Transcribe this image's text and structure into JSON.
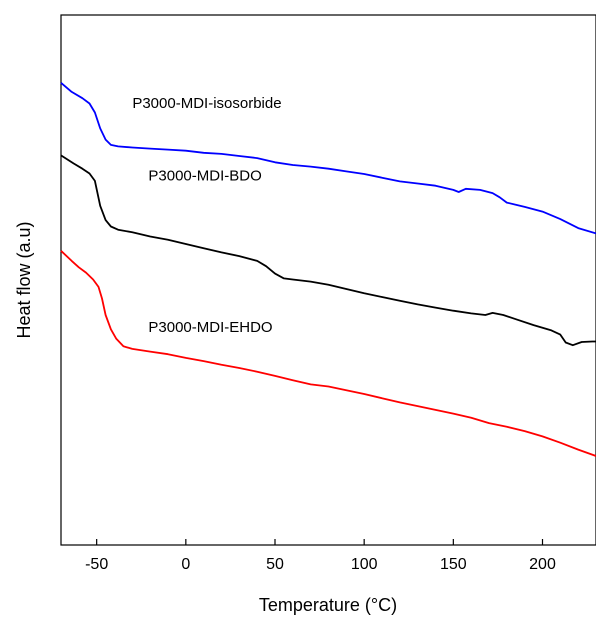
{
  "chart_data": {
    "type": "line",
    "title": "",
    "xlabel": "Temperature (°C)",
    "ylabel": "Heat flow (a.u)",
    "xlim": [
      -70,
      230
    ],
    "ylim": [
      0,
      100
    ],
    "x_ticks": [
      -50,
      0,
      50,
      100,
      150,
      200
    ],
    "x_tick_labels": [
      "-50",
      "0",
      "50",
      "100",
      "150",
      "200"
    ],
    "y_ticks_shown": false,
    "grid": false,
    "legend": "none",
    "series": [
      {
        "name": "P3000-MDI-isosorbide",
        "color": "#0000ff",
        "label_at": [
          -30,
          82.5
        ],
        "points": [
          [
            -70,
            87.2
          ],
          [
            -64,
            85.5
          ],
          [
            -58,
            84.3
          ],
          [
            -54,
            83.3
          ],
          [
            -51,
            81.6
          ],
          [
            -48,
            78.6
          ],
          [
            -45,
            76.5
          ],
          [
            -42,
            75.5
          ],
          [
            -38,
            75.2
          ],
          [
            -30,
            75
          ],
          [
            -20,
            74.8
          ],
          [
            -10,
            74.6
          ],
          [
            0,
            74.4
          ],
          [
            10,
            74
          ],
          [
            20,
            73.8
          ],
          [
            30,
            73.4
          ],
          [
            40,
            73
          ],
          [
            50,
            72.2
          ],
          [
            60,
            71.7
          ],
          [
            70,
            71.4
          ],
          [
            80,
            71
          ],
          [
            90,
            70.5
          ],
          [
            100,
            70
          ],
          [
            110,
            69.3
          ],
          [
            120,
            68.6
          ],
          [
            130,
            68.2
          ],
          [
            140,
            67.8
          ],
          [
            150,
            67
          ],
          [
            153,
            66.6
          ],
          [
            157,
            67.2
          ],
          [
            165,
            67
          ],
          [
            172,
            66.4
          ],
          [
            176,
            65.6
          ],
          [
            180,
            64.6
          ],
          [
            185,
            64.2
          ],
          [
            190,
            63.8
          ],
          [
            200,
            62.9
          ],
          [
            210,
            61.5
          ],
          [
            220,
            59.8
          ],
          [
            230,
            58.8
          ]
        ]
      },
      {
        "name": "P3000-MDI-BDO",
        "color": "#000000",
        "label_at": [
          -21,
          68.8
        ],
        "points": [
          [
            -70,
            73.5
          ],
          [
            -63,
            72
          ],
          [
            -58,
            71
          ],
          [
            -54,
            70.1
          ],
          [
            -51,
            68.7
          ],
          [
            -48,
            64
          ],
          [
            -45,
            61.3
          ],
          [
            -42,
            60.1
          ],
          [
            -38,
            59.5
          ],
          [
            -30,
            59
          ],
          [
            -20,
            58.2
          ],
          [
            -10,
            57.6
          ],
          [
            0,
            56.8
          ],
          [
            10,
            56
          ],
          [
            20,
            55.2
          ],
          [
            30,
            54.5
          ],
          [
            40,
            53.6
          ],
          [
            45,
            52.6
          ],
          [
            50,
            51.2
          ],
          [
            55,
            50.3
          ],
          [
            60,
            50.1
          ],
          [
            70,
            49.7
          ],
          [
            80,
            49.1
          ],
          [
            90,
            48.3
          ],
          [
            100,
            47.5
          ],
          [
            110,
            46.8
          ],
          [
            120,
            46.1
          ],
          [
            130,
            45.4
          ],
          [
            140,
            44.8
          ],
          [
            150,
            44.2
          ],
          [
            160,
            43.7
          ],
          [
            168,
            43.4
          ],
          [
            172,
            43.8
          ],
          [
            178,
            43.4
          ],
          [
            185,
            42.6
          ],
          [
            195,
            41.5
          ],
          [
            205,
            40.5
          ],
          [
            210,
            39.7
          ],
          [
            213,
            38.2
          ],
          [
            217,
            37.7
          ],
          [
            222,
            38.3
          ],
          [
            228,
            38.4
          ],
          [
            230,
            38.4
          ]
        ]
      },
      {
        "name": "P3000-MDI-EHDO",
        "color": "#ff0000",
        "label_at": [
          -21,
          40.2
        ],
        "points": [
          [
            -70,
            55.5
          ],
          [
            -64,
            53.6
          ],
          [
            -60,
            52.4
          ],
          [
            -56,
            51.4
          ],
          [
            -52,
            50.1
          ],
          [
            -49,
            48.7
          ],
          [
            -47,
            46.5
          ],
          [
            -45,
            43.4
          ],
          [
            -42,
            40.7
          ],
          [
            -39,
            38.9
          ],
          [
            -35,
            37.5
          ],
          [
            -30,
            37
          ],
          [
            -20,
            36.5
          ],
          [
            -10,
            36
          ],
          [
            0,
            35.3
          ],
          [
            10,
            34.7
          ],
          [
            20,
            34
          ],
          [
            30,
            33.4
          ],
          [
            40,
            32.7
          ],
          [
            50,
            31.9
          ],
          [
            60,
            31.1
          ],
          [
            70,
            30.3
          ],
          [
            80,
            29.9
          ],
          [
            90,
            29.2
          ],
          [
            100,
            28.5
          ],
          [
            110,
            27.7
          ],
          [
            120,
            26.9
          ],
          [
            130,
            26.2
          ],
          [
            140,
            25.5
          ],
          [
            150,
            24.8
          ],
          [
            160,
            24
          ],
          [
            170,
            23
          ],
          [
            180,
            22.3
          ],
          [
            190,
            21.5
          ],
          [
            200,
            20.5
          ],
          [
            210,
            19.3
          ],
          [
            220,
            18
          ],
          [
            230,
            16.8
          ]
        ]
      }
    ]
  }
}
